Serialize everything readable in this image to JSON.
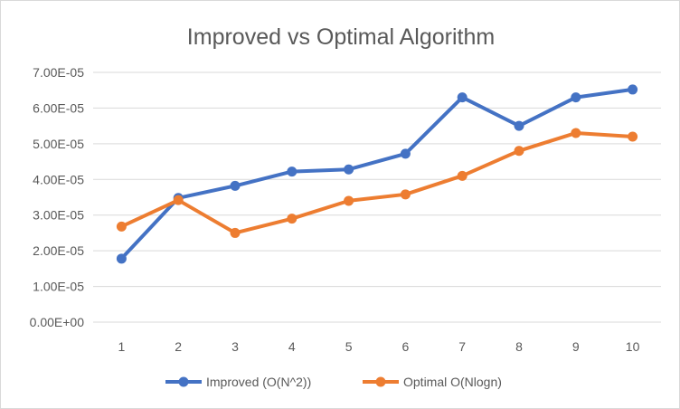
{
  "chart_data": {
    "type": "line",
    "title": "Improved vs Optimal Algorithm",
    "xlabel": "",
    "ylabel": "",
    "categories": [
      "1",
      "2",
      "3",
      "4",
      "5",
      "6",
      "7",
      "8",
      "9",
      "10"
    ],
    "ylim": [
      0,
      7e-05
    ],
    "y_ticks": [
      "0.00E+00",
      "1.00E-05",
      "2.00E-05",
      "3.00E-05",
      "4.00E-05",
      "5.00E-05",
      "6.00E-05",
      "7.00E-05"
    ],
    "grid": true,
    "legend_position": "bottom",
    "series": [
      {
        "name": "Improved (O(N^2))",
        "color": "#4472C4",
        "values": [
          1.78e-05,
          3.48e-05,
          3.82e-05,
          4.22e-05,
          4.28e-05,
          4.72e-05,
          6.3e-05,
          5.5e-05,
          6.3e-05,
          6.52e-05
        ]
      },
      {
        "name": "Optimal O(Nlogn)",
        "color": "#ED7D31",
        "values": [
          2.68e-05,
          3.42e-05,
          2.5e-05,
          2.9e-05,
          3.4e-05,
          3.58e-05,
          4.1e-05,
          4.8e-05,
          5.3e-05,
          5.2e-05
        ]
      }
    ]
  }
}
